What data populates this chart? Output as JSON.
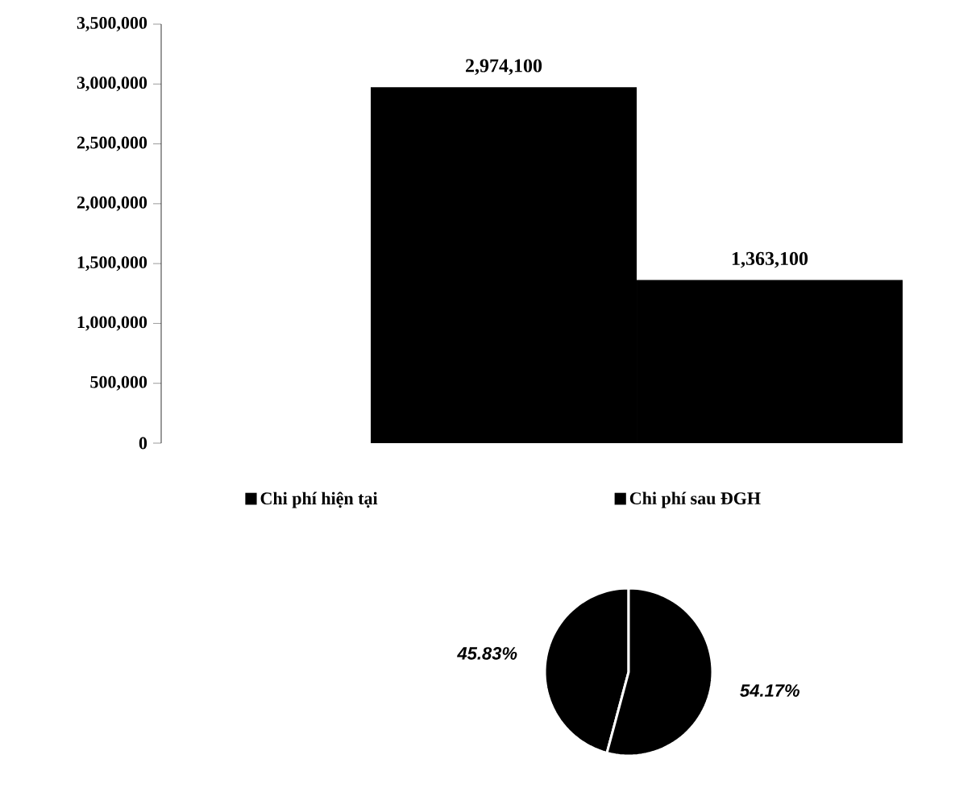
{
  "chart_data": [
    {
      "type": "bar",
      "categories": [
        null
      ],
      "series": [
        {
          "name": "Chi phí hiện tại",
          "color": "#000000",
          "values": [
            2974100
          ],
          "value_labels": [
            "2,974,100"
          ]
        },
        {
          "name": "Chi phí sau ĐGH",
          "color": "#000000",
          "values": [
            1363100
          ],
          "value_labels": [
            "1,363,100"
          ]
        }
      ],
      "ylim": [
        0,
        3500000
      ],
      "yticks": [
        {
          "value": 0,
          "label": "0"
        },
        {
          "value": 500000,
          "label": "500,000"
        },
        {
          "value": 1000000,
          "label": "1,000,000"
        },
        {
          "value": 1500000,
          "label": "1,500,000"
        },
        {
          "value": 2000000,
          "label": "2,000,000"
        },
        {
          "value": 2500000,
          "label": "2,500,000"
        },
        {
          "value": 3000000,
          "label": "3,000,000"
        },
        {
          "value": 3500000,
          "label": "3,500,000"
        }
      ],
      "legend": "bottom"
    },
    {
      "type": "pie",
      "categories": [
        null,
        null
      ],
      "values": [
        45.83,
        54.17
      ],
      "colors": [
        "#000000",
        "#000000"
      ],
      "value_labels": [
        "45.83%",
        "54.17%"
      ]
    }
  ]
}
